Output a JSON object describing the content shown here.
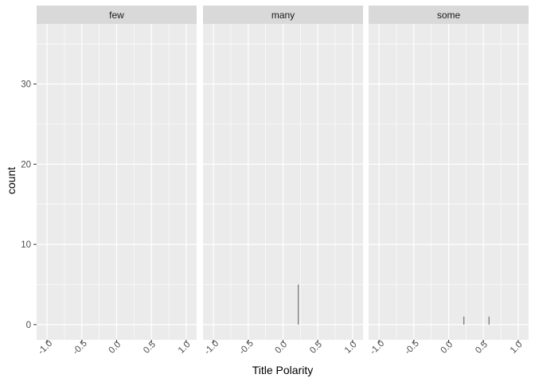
{
  "chart_data": {
    "type": "bar",
    "subtype": "histogram-faceted",
    "xlabel": "Title Polarity",
    "ylabel": "count",
    "xlim": [
      -1.15,
      1.15
    ],
    "ylim": [
      -1.9,
      37.5
    ],
    "x_ticks": [
      -1.0,
      -0.5,
      0.0,
      0.5,
      1.0
    ],
    "x_tick_labels": [
      "-1.0",
      "-0.5",
      "0.0",
      "0.5",
      "1.0"
    ],
    "y_ticks": [
      0,
      10,
      20,
      30
    ],
    "y_tick_labels": [
      "0",
      "10",
      "20",
      "30"
    ],
    "grid": true,
    "facets": [
      {
        "label": "few",
        "bars": []
      },
      {
        "label": "many",
        "bars": [
          {
            "x": 0.22,
            "count": 5
          }
        ]
      },
      {
        "label": "some",
        "bars": [
          {
            "x": 0.22,
            "count": 1
          },
          {
            "x": 0.58,
            "count": 1
          }
        ]
      }
    ]
  },
  "colors": {
    "panel_bg": "#ebebeb",
    "strip_bg": "#d9d9d9",
    "grid_major": "#ffffff",
    "bar": "#595959"
  }
}
